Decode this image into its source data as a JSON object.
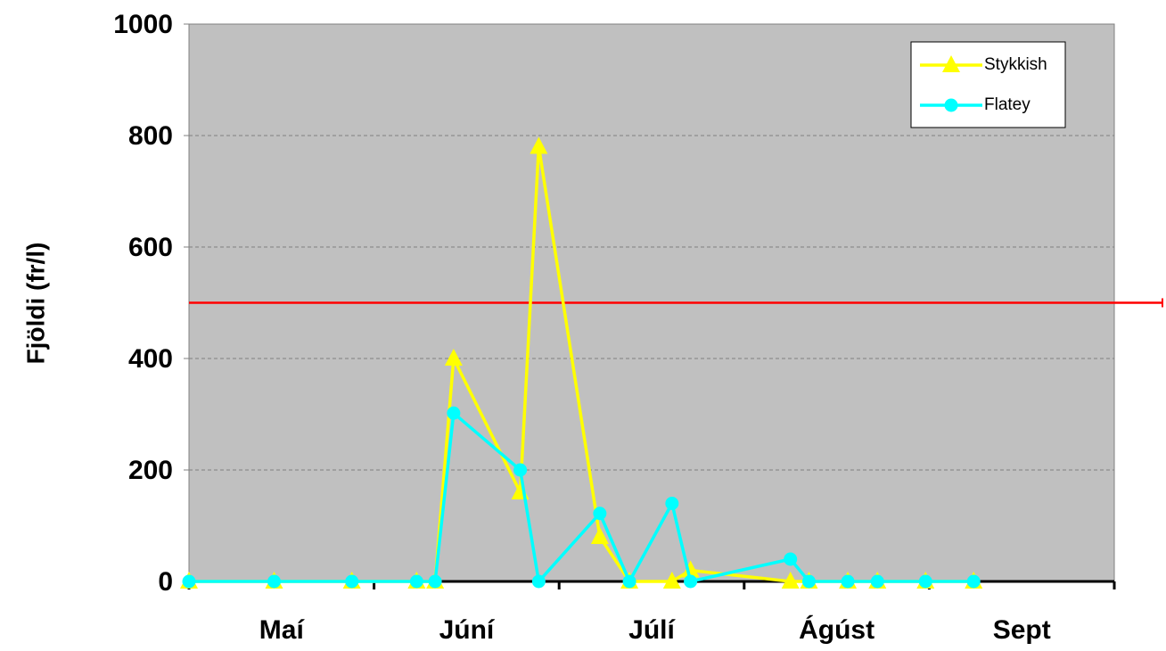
{
  "chart_data": {
    "type": "line",
    "ylabel": "Fjöldi (fr/l)",
    "categories": [
      "Maí",
      "Júní",
      "Júlí",
      "Ágúst",
      "Sept"
    ],
    "x": [
      0.0,
      0.46,
      0.88,
      1.23,
      1.33,
      1.43,
      1.79,
      1.89,
      2.22,
      2.38,
      2.61,
      2.71,
      3.25,
      3.35,
      3.56,
      3.72,
      3.98,
      4.24
    ],
    "xlim": [
      0,
      5
    ],
    "xticks": [
      0,
      1,
      2,
      3,
      4,
      5
    ],
    "ylim": [
      0,
      1000
    ],
    "yticks": [
      0,
      200,
      400,
      600,
      800,
      1000
    ],
    "grid": true,
    "threshold": {
      "value": 500,
      "color": "#ff0000"
    },
    "series": [
      {
        "name": "Stykkish",
        "color": "#ffff00",
        "marker": "triangle",
        "values": [
          0,
          0,
          0,
          0,
          0,
          400,
          160,
          780,
          80,
          0,
          0,
          20,
          0,
          0,
          0,
          0,
          0,
          0
        ]
      },
      {
        "name": "Flatey",
        "color": "#00ffff",
        "marker": "circle",
        "values": [
          0,
          0,
          0,
          0,
          0,
          302,
          200,
          0,
          122,
          0,
          140,
          0,
          40,
          0,
          0,
          0,
          0,
          0
        ]
      }
    ],
    "legend": "upper right"
  }
}
